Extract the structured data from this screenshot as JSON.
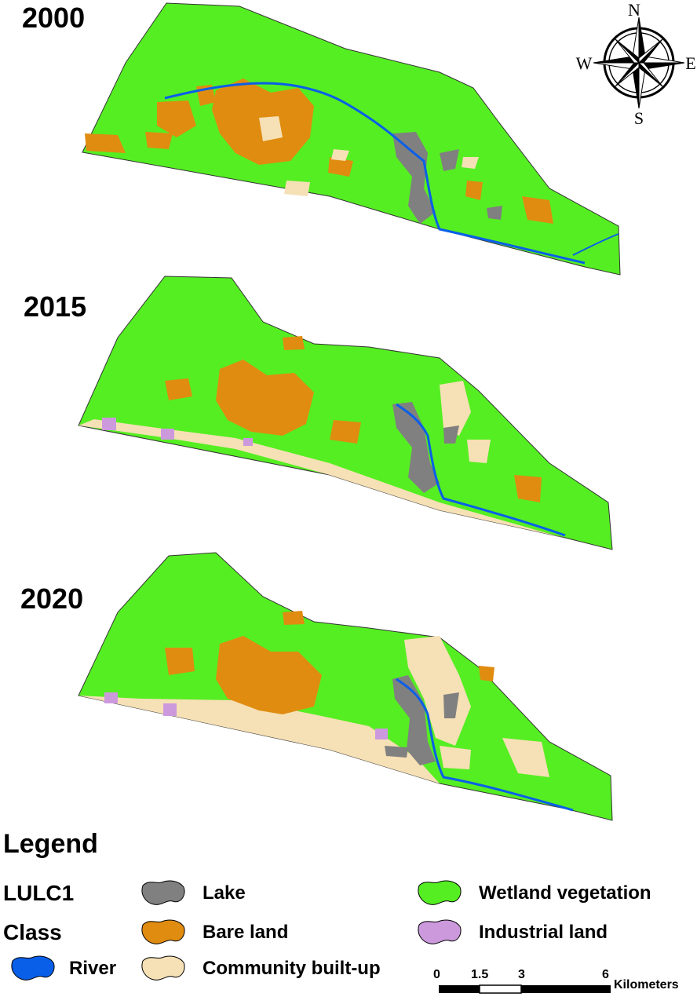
{
  "maps": [
    {
      "year": "2000"
    },
    {
      "year": "2015"
    },
    {
      "year": "2020"
    }
  ],
  "compass": {
    "n": "N",
    "s": "S",
    "e": "E",
    "w": "W"
  },
  "legend": {
    "title": "Legend",
    "heading_line1": "LULC1",
    "heading_line2": "Class",
    "items": [
      {
        "label": "River",
        "color": "#0a5fe8",
        "icon": "river-patch-icon"
      },
      {
        "label": "Lake",
        "color": "#808080",
        "icon": "lake-patch-icon"
      },
      {
        "label": "Bare land",
        "color": "#e08c10",
        "icon": "bare-land-patch-icon"
      },
      {
        "label": "Community built-up",
        "color": "#f6e0b5",
        "icon": "community-built-up-patch-icon"
      },
      {
        "label": "Wetland vegetation",
        "color": "#55ee22",
        "icon": "wetland-vegetation-patch-icon"
      },
      {
        "label": "Industrial land",
        "color": "#cc99dd",
        "icon": "industrial-land-patch-icon"
      }
    ]
  },
  "scale_bar": {
    "ticks": [
      "0",
      "1.5",
      "3",
      "6"
    ],
    "unit": "Kilometers"
  }
}
